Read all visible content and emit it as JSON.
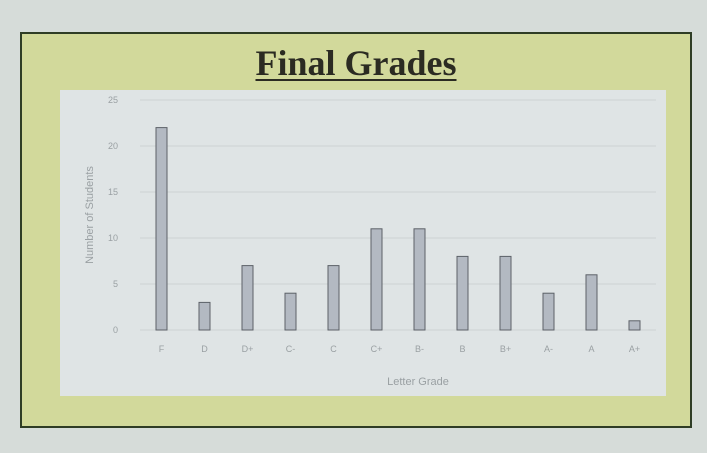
{
  "slide": {
    "title": "Final Grades"
  },
  "colors": {
    "frame": "#2f3d25",
    "slide_bg": "#d2d99b",
    "plot_bg": "#dfe4e5",
    "bar": "#b3b9c2",
    "bar_stroke": "#5c6168"
  },
  "chart_data": {
    "type": "bar",
    "title": "",
    "xlabel": "Letter Grade",
    "ylabel": "Number of Students",
    "categories": [
      "F",
      "D",
      "D+",
      "C-",
      "C",
      "C+",
      "B-",
      "B",
      "B+",
      "A-",
      "A",
      "A+"
    ],
    "values": [
      22,
      3,
      7,
      4,
      7,
      11,
      11,
      8,
      8,
      4,
      6,
      1
    ],
    "ylim": [
      0,
      25
    ],
    "yticks": [
      0,
      5,
      10,
      15,
      20,
      25
    ],
    "grid": true
  }
}
